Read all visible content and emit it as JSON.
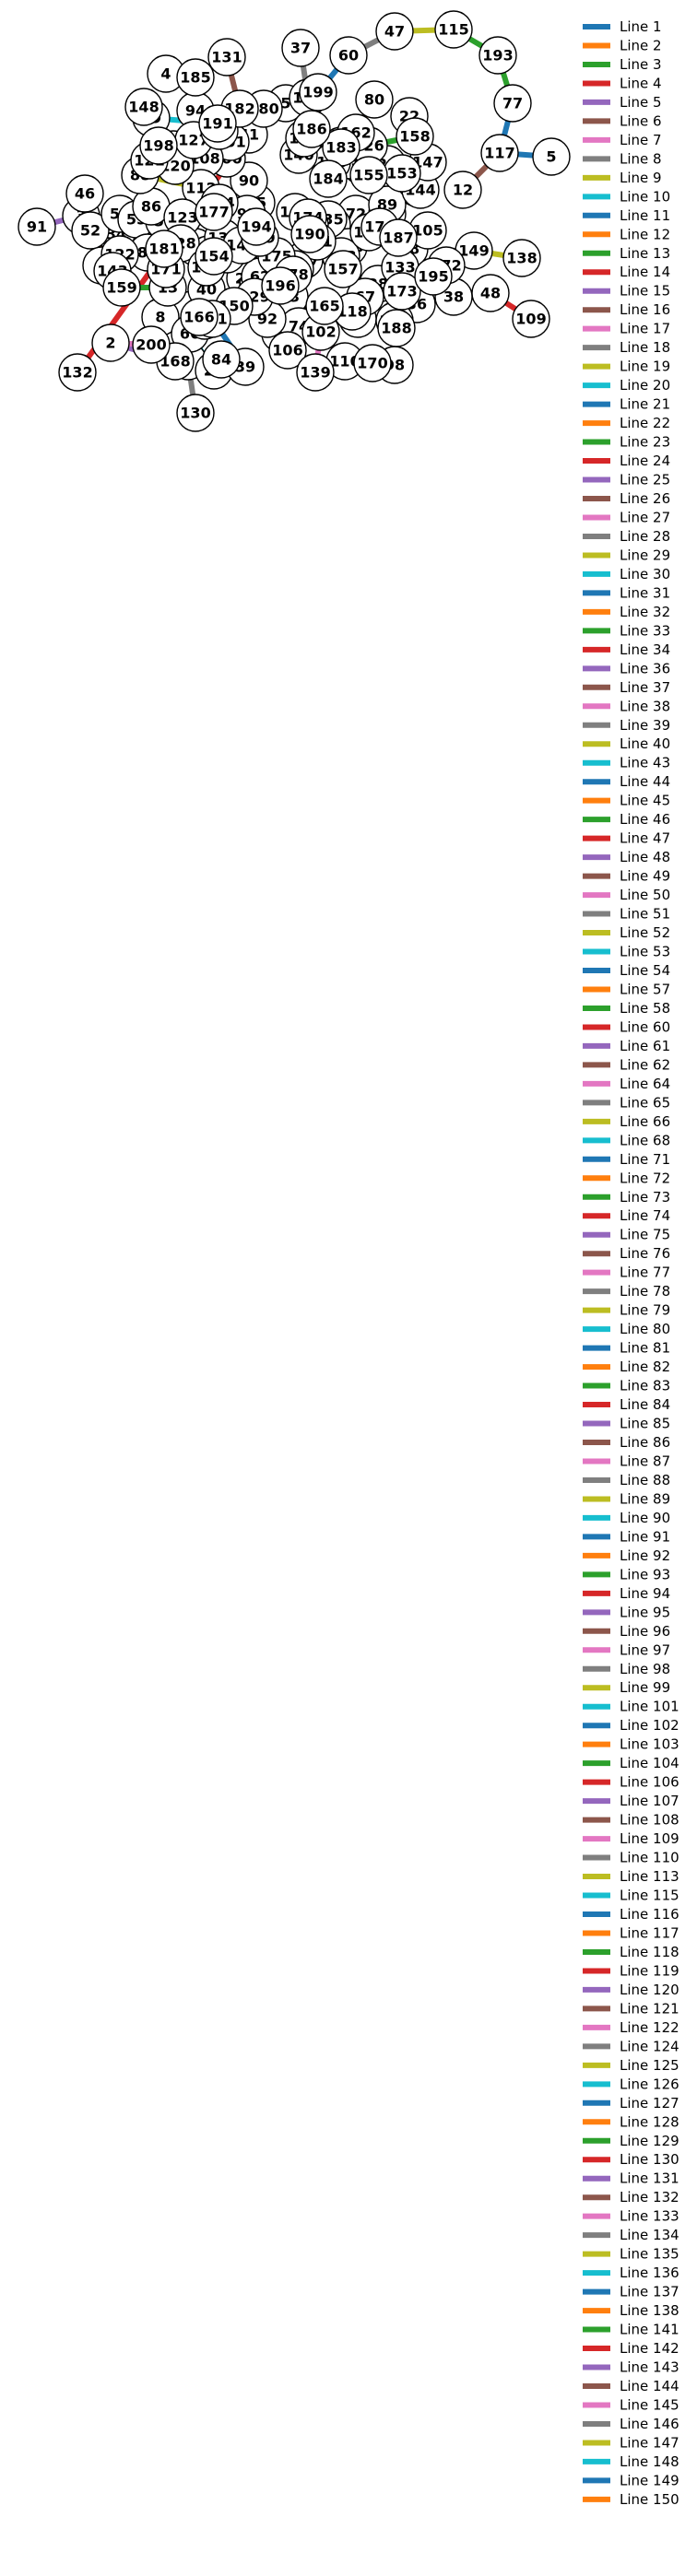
{
  "graph": {
    "nodes": [
      "1",
      "2",
      "3",
      "4",
      "5",
      "6",
      "8",
      "9",
      "12",
      "13",
      "18",
      "19",
      "21",
      "22",
      "24",
      "25",
      "26",
      "28",
      "29",
      "30",
      "31",
      "33",
      "34",
      "36",
      "37",
      "38",
      "39",
      "40",
      "41",
      "42",
      "43",
      "45",
      "46",
      "47",
      "48",
      "49",
      "52",
      "54",
      "55",
      "57",
      "58",
      "60",
      "62",
      "63",
      "64",
      "66",
      "67",
      "69",
      "71",
      "72",
      "73",
      "74",
      "76",
      "77",
      "80",
      "81",
      "82",
      "84",
      "85",
      "86",
      "87",
      "88",
      "89",
      "90",
      "91",
      "92",
      "93",
      "94",
      "98",
      "99",
      "100",
      "101",
      "102",
      "103",
      "104",
      "105",
      "106",
      "107",
      "108",
      "109",
      "110",
      "112",
      "113",
      "114",
      "115",
      "116",
      "117",
      "118",
      "120",
      "121",
      "122",
      "123",
      "124",
      "125",
      "126",
      "127",
      "128",
      "129",
      "130",
      "131",
      "132",
      "133",
      "134",
      "135",
      "136",
      "137",
      "138",
      "139",
      "140",
      "141",
      "142",
      "143",
      "144",
      "145",
      "146",
      "147",
      "148",
      "149",
      "150",
      "151",
      "153",
      "154",
      "155",
      "156",
      "157",
      "158",
      "159",
      "161",
      "162",
      "163",
      "165",
      "166",
      "167",
      "168",
      "169",
      "170",
      "171",
      "172",
      "173",
      "174",
      "175",
      "176",
      "177",
      "178",
      "179",
      "180",
      "181",
      "182",
      "183",
      "184",
      "185",
      "186",
      "187",
      "188",
      "189",
      "190",
      "191",
      "193",
      "194",
      "195",
      "196",
      "198",
      "199",
      "200"
    ],
    "links": [
      {
        "source": "47",
        "target": "115",
        "color": "#bcbd22"
      },
      {
        "source": "115",
        "target": "193",
        "color": "#2ca02c"
      },
      {
        "source": "193",
        "target": "77",
        "color": "#2ca02c"
      },
      {
        "source": "77",
        "target": "117",
        "color": "#1f77b4"
      },
      {
        "source": "117",
        "target": "5",
        "color": "#1f77b4"
      },
      {
        "source": "117",
        "target": "12",
        "color": "#8c564b"
      },
      {
        "source": "60",
        "target": "47",
        "color": "#7f7f7f"
      },
      {
        "source": "60",
        "target": "199",
        "color": "#1f77b4"
      },
      {
        "source": "149",
        "target": "138",
        "color": "#bcbd22"
      },
      {
        "source": "48",
        "target": "109",
        "color": "#d62728"
      },
      {
        "source": "38",
        "target": "48",
        "color": "#2ca02c"
      },
      {
        "source": "172",
        "target": "149",
        "color": "#1f77b4"
      },
      {
        "source": "91",
        "target": "3",
        "color": "#9467bd"
      },
      {
        "source": "2",
        "target": "168",
        "color": "#9467bd"
      },
      {
        "source": "2",
        "target": "200",
        "color": "#e377c2"
      },
      {
        "source": "131",
        "target": "182",
        "color": "#8c564b"
      },
      {
        "source": "69",
        "target": "191",
        "color": "#17becf"
      },
      {
        "source": "110",
        "target": "102",
        "color": "#e377c2"
      },
      {
        "source": "139",
        "target": "102",
        "color": "#e377c2"
      },
      {
        "source": "66",
        "target": "21",
        "color": "#17becf"
      },
      {
        "source": "88",
        "target": "112",
        "color": "#bcbd22"
      },
      {
        "source": "4",
        "target": "185",
        "color": "#ff7f0e"
      },
      {
        "source": "37",
        "target": "169",
        "color": "#7f7f7f"
      },
      {
        "source": "80",
        "target": "162",
        "color": "#ff7f0e"
      },
      {
        "source": "22",
        "target": "147",
        "color": "#8c564b"
      },
      {
        "source": "63",
        "target": "144",
        "color": "#d62728"
      },
      {
        "source": "158",
        "target": "126",
        "color": "#2ca02c"
      },
      {
        "source": "105",
        "target": "18",
        "color": "#9467bd"
      },
      {
        "source": "195",
        "target": "38",
        "color": "#8c564b"
      },
      {
        "source": "36",
        "target": "89",
        "color": "#7f7f7f"
      },
      {
        "source": "98",
        "target": "170",
        "color": "#ff7f0e"
      },
      {
        "source": "106",
        "target": "49",
        "color": "#2ca02c"
      },
      {
        "source": "39",
        "target": "161",
        "color": "#1f77b4"
      },
      {
        "source": "130",
        "target": "9",
        "color": "#7f7f7f"
      },
      {
        "source": "132",
        "target": "41",
        "color": "#d62728"
      },
      {
        "source": "46",
        "target": "3",
        "color": "#e377c2"
      },
      {
        "source": "148",
        "target": "69",
        "color": "#8c564b"
      },
      {
        "source": "52",
        "target": "143",
        "color": "#ff7f0e"
      },
      {
        "source": "159",
        "target": "13",
        "color": "#2ca02c"
      }
    ]
  },
  "legend": {
    "entries": [
      {
        "label": "Line 1",
        "color": "#1f77b4"
      },
      {
        "label": "Line 2",
        "color": "#ff7f0e"
      },
      {
        "label": "Line 3",
        "color": "#2ca02c"
      },
      {
        "label": "Line 4",
        "color": "#d62728"
      },
      {
        "label": "Line 5",
        "color": "#9467bd"
      },
      {
        "label": "Line 6",
        "color": "#8c564b"
      },
      {
        "label": "Line 7",
        "color": "#e377c2"
      },
      {
        "label": "Line 8",
        "color": "#7f7f7f"
      },
      {
        "label": "Line 9",
        "color": "#bcbd22"
      },
      {
        "label": "Line 10",
        "color": "#17becf"
      },
      {
        "label": "Line 11",
        "color": "#1f77b4"
      },
      {
        "label": "Line 12",
        "color": "#ff7f0e"
      },
      {
        "label": "Line 13",
        "color": "#2ca02c"
      },
      {
        "label": "Line 14",
        "color": "#d62728"
      },
      {
        "label": "Line 15",
        "color": "#9467bd"
      },
      {
        "label": "Line 16",
        "color": "#8c564b"
      },
      {
        "label": "Line 17",
        "color": "#e377c2"
      },
      {
        "label": "Line 18",
        "color": "#7f7f7f"
      },
      {
        "label": "Line 19",
        "color": "#bcbd22"
      },
      {
        "label": "Line 20",
        "color": "#17becf"
      },
      {
        "label": "Line 21",
        "color": "#1f77b4"
      },
      {
        "label": "Line 22",
        "color": "#ff7f0e"
      },
      {
        "label": "Line 23",
        "color": "#2ca02c"
      },
      {
        "label": "Line 24",
        "color": "#d62728"
      },
      {
        "label": "Line 25",
        "color": "#9467bd"
      },
      {
        "label": "Line 26",
        "color": "#8c564b"
      },
      {
        "label": "Line 27",
        "color": "#e377c2"
      },
      {
        "label": "Line 28",
        "color": "#7f7f7f"
      },
      {
        "label": "Line 29",
        "color": "#bcbd22"
      },
      {
        "label": "Line 30",
        "color": "#17becf"
      },
      {
        "label": "Line 31",
        "color": "#1f77b4"
      },
      {
        "label": "Line 32",
        "color": "#ff7f0e"
      },
      {
        "label": "Line 33",
        "color": "#2ca02c"
      },
      {
        "label": "Line 34",
        "color": "#d62728"
      },
      {
        "label": "Line 36",
        "color": "#9467bd"
      },
      {
        "label": "Line 37",
        "color": "#8c564b"
      },
      {
        "label": "Line 38",
        "color": "#e377c2"
      },
      {
        "label": "Line 39",
        "color": "#7f7f7f"
      },
      {
        "label": "Line 40",
        "color": "#bcbd22"
      },
      {
        "label": "Line 43",
        "color": "#17becf"
      },
      {
        "label": "Line 44",
        "color": "#1f77b4"
      },
      {
        "label": "Line 45",
        "color": "#ff7f0e"
      },
      {
        "label": "Line 46",
        "color": "#2ca02c"
      },
      {
        "label": "Line 47",
        "color": "#d62728"
      },
      {
        "label": "Line 48",
        "color": "#9467bd"
      },
      {
        "label": "Line 49",
        "color": "#8c564b"
      },
      {
        "label": "Line 50",
        "color": "#e377c2"
      },
      {
        "label": "Line 51",
        "color": "#7f7f7f"
      },
      {
        "label": "Line 52",
        "color": "#bcbd22"
      },
      {
        "label": "Line 53",
        "color": "#17becf"
      },
      {
        "label": "Line 54",
        "color": "#1f77b4"
      },
      {
        "label": "Line 57",
        "color": "#ff7f0e"
      },
      {
        "label": "Line 58",
        "color": "#2ca02c"
      },
      {
        "label": "Line 60",
        "color": "#d62728"
      },
      {
        "label": "Line 61",
        "color": "#9467bd"
      },
      {
        "label": "Line 62",
        "color": "#8c564b"
      },
      {
        "label": "Line 64",
        "color": "#e377c2"
      },
      {
        "label": "Line 65",
        "color": "#7f7f7f"
      },
      {
        "label": "Line 66",
        "color": "#bcbd22"
      },
      {
        "label": "Line 68",
        "color": "#17becf"
      },
      {
        "label": "Line 71",
        "color": "#1f77b4"
      },
      {
        "label": "Line 72",
        "color": "#ff7f0e"
      },
      {
        "label": "Line 73",
        "color": "#2ca02c"
      },
      {
        "label": "Line 74",
        "color": "#d62728"
      },
      {
        "label": "Line 75",
        "color": "#9467bd"
      },
      {
        "label": "Line 76",
        "color": "#8c564b"
      },
      {
        "label": "Line 77",
        "color": "#e377c2"
      },
      {
        "label": "Line 78",
        "color": "#7f7f7f"
      },
      {
        "label": "Line 79",
        "color": "#bcbd22"
      },
      {
        "label": "Line 80",
        "color": "#17becf"
      },
      {
        "label": "Line 81",
        "color": "#1f77b4"
      },
      {
        "label": "Line 82",
        "color": "#ff7f0e"
      },
      {
        "label": "Line 83",
        "color": "#2ca02c"
      },
      {
        "label": "Line 84",
        "color": "#d62728"
      },
      {
        "label": "Line 85",
        "color": "#9467bd"
      },
      {
        "label": "Line 86",
        "color": "#8c564b"
      },
      {
        "label": "Line 87",
        "color": "#e377c2"
      },
      {
        "label": "Line 88",
        "color": "#7f7f7f"
      },
      {
        "label": "Line 89",
        "color": "#bcbd22"
      },
      {
        "label": "Line 90",
        "color": "#17becf"
      },
      {
        "label": "Line 91",
        "color": "#1f77b4"
      },
      {
        "label": "Line 92",
        "color": "#ff7f0e"
      },
      {
        "label": "Line 93",
        "color": "#2ca02c"
      },
      {
        "label": "Line 94",
        "color": "#d62728"
      },
      {
        "label": "Line 95",
        "color": "#9467bd"
      },
      {
        "label": "Line 96",
        "color": "#8c564b"
      },
      {
        "label": "Line 97",
        "color": "#e377c2"
      },
      {
        "label": "Line 98",
        "color": "#7f7f7f"
      },
      {
        "label": "Line 99",
        "color": "#bcbd22"
      },
      {
        "label": "Line 101",
        "color": "#17becf"
      },
      {
        "label": "Line 102",
        "color": "#1f77b4"
      },
      {
        "label": "Line 103",
        "color": "#ff7f0e"
      },
      {
        "label": "Line 104",
        "color": "#2ca02c"
      },
      {
        "label": "Line 106",
        "color": "#d62728"
      },
      {
        "label": "Line 107",
        "color": "#9467bd"
      },
      {
        "label": "Line 108",
        "color": "#8c564b"
      },
      {
        "label": "Line 109",
        "color": "#e377c2"
      },
      {
        "label": "Line 110",
        "color": "#7f7f7f"
      },
      {
        "label": "Line 113",
        "color": "#bcbd22"
      },
      {
        "label": "Line 115",
        "color": "#17becf"
      },
      {
        "label": "Line 116",
        "color": "#1f77b4"
      },
      {
        "label": "Line 117",
        "color": "#ff7f0e"
      },
      {
        "label": "Line 118",
        "color": "#2ca02c"
      },
      {
        "label": "Line 119",
        "color": "#d62728"
      },
      {
        "label": "Line 120",
        "color": "#9467bd"
      },
      {
        "label": "Line 121",
        "color": "#8c564b"
      },
      {
        "label": "Line 122",
        "color": "#e377c2"
      },
      {
        "label": "Line 124",
        "color": "#7f7f7f"
      },
      {
        "label": "Line 125",
        "color": "#bcbd22"
      },
      {
        "label": "Line 126",
        "color": "#17becf"
      },
      {
        "label": "Line 127",
        "color": "#1f77b4"
      },
      {
        "label": "Line 128",
        "color": "#ff7f0e"
      },
      {
        "label": "Line 129",
        "color": "#2ca02c"
      },
      {
        "label": "Line 130",
        "color": "#d62728"
      },
      {
        "label": "Line 131",
        "color": "#9467bd"
      },
      {
        "label": "Line 132",
        "color": "#8c564b"
      },
      {
        "label": "Line 133",
        "color": "#e377c2"
      },
      {
        "label": "Line 134",
        "color": "#7f7f7f"
      },
      {
        "label": "Line 135",
        "color": "#bcbd22"
      },
      {
        "label": "Line 136",
        "color": "#17becf"
      },
      {
        "label": "Line 137",
        "color": "#1f77b4"
      },
      {
        "label": "Line 138",
        "color": "#ff7f0e"
      },
      {
        "label": "Line 141",
        "color": "#2ca02c"
      },
      {
        "label": "Line 142",
        "color": "#d62728"
      },
      {
        "label": "Line 143",
        "color": "#9467bd"
      },
      {
        "label": "Line 144",
        "color": "#8c564b"
      },
      {
        "label": "Line 145",
        "color": "#e377c2"
      },
      {
        "label": "Line 146",
        "color": "#7f7f7f"
      },
      {
        "label": "Line 147",
        "color": "#bcbd22"
      },
      {
        "label": "Line 148",
        "color": "#17becf"
      },
      {
        "label": "Line 149",
        "color": "#1f77b4"
      },
      {
        "label": "Line 150",
        "color": "#ff7f0e"
      }
    ]
  }
}
